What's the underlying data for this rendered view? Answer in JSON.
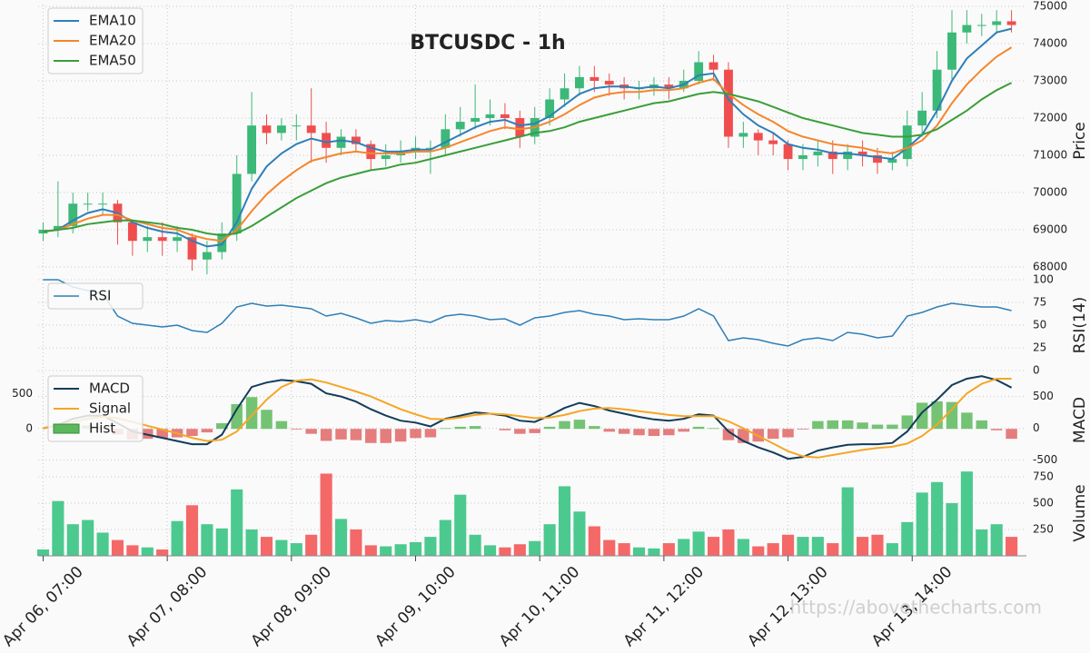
{
  "watermark": "https://abovethecharts.com",
  "chart_data": [
    {
      "type": "candlestick",
      "title": "BTCUSDC - 1h",
      "ylabel": "Price",
      "x": [
        0,
        3,
        6,
        9,
        12,
        15,
        18,
        21,
        24,
        27,
        30,
        33,
        36,
        39,
        42,
        45,
        48,
        51,
        54,
        57,
        60,
        63,
        66,
        69,
        72,
        75,
        78,
        81,
        84,
        87,
        90,
        93,
        96,
        99,
        102,
        105,
        108,
        111,
        114,
        117,
        120,
        123,
        126,
        129,
        132,
        135,
        138,
        141,
        144,
        147,
        150,
        153,
        156,
        159,
        162,
        165,
        168,
        171,
        174,
        177,
        180,
        183,
        186,
        189,
        192,
        195
      ],
      "xlim": [
        -1,
        198
      ],
      "xticks": [
        {
          "value": 0,
          "label": "Apr 06, 07:00"
        },
        {
          "value": 25,
          "label": "Apr 07, 08:00"
        },
        {
          "value": 50,
          "label": "Apr 08, 09:00"
        },
        {
          "value": 75,
          "label": "Apr 09, 10:00"
        },
        {
          "value": 100,
          "label": "Apr 10, 11:00"
        },
        {
          "value": 125,
          "label": "Apr 11, 12:00"
        },
        {
          "value": 150,
          "label": "Apr 12, 13:00"
        },
        {
          "value": 175,
          "label": "Apr 13, 14:00"
        }
      ],
      "open": [
        68900,
        69000,
        69100,
        69700,
        69700,
        69700,
        69200,
        68700,
        68800,
        68700,
        68800,
        68200,
        68400,
        68900,
        70500,
        71800,
        71600,
        71800,
        71800,
        71600,
        71200,
        71500,
        71300,
        70900,
        71000,
        71100,
        71200,
        71200,
        71700,
        71900,
        72000,
        72100,
        72000,
        71500,
        72000,
        72500,
        72800,
        73100,
        73000,
        72900,
        72800,
        72800,
        72900,
        72800,
        73000,
        73500,
        73300,
        71500,
        71600,
        71400,
        71300,
        70900,
        71000,
        71100,
        70900,
        71100,
        71000,
        70800,
        70900,
        71800,
        72200,
        73300,
        74300,
        74500,
        74500,
        74600
      ],
      "high": [
        69200,
        70300,
        70000,
        70000,
        70000,
        69800,
        69200,
        69100,
        69200,
        69100,
        68900,
        68700,
        69200,
        71000,
        72700,
        72100,
        72000,
        72100,
        72800,
        71900,
        71700,
        71700,
        71400,
        71300,
        71400,
        71500,
        71400,
        72100,
        72300,
        72900,
        72500,
        72400,
        72200,
        72300,
        72800,
        73200,
        73400,
        73400,
        73200,
        73100,
        73000,
        73100,
        73100,
        73300,
        73800,
        73700,
        73500,
        71900,
        71700,
        71600,
        71400,
        71300,
        71400,
        71400,
        71300,
        71400,
        71200,
        71100,
        72200,
        72700,
        73800,
        74900,
        74900,
        74800,
        74900,
        74900
      ],
      "low": [
        68700,
        68800,
        68900,
        69500,
        69400,
        68600,
        68300,
        68400,
        68300,
        68400,
        67900,
        67800,
        68200,
        68700,
        70300,
        71300,
        71400,
        71400,
        70800,
        70800,
        71000,
        71100,
        70600,
        70700,
        70800,
        70900,
        70500,
        71000,
        71500,
        71700,
        71800,
        71700,
        71200,
        71300,
        71800,
        72300,
        72600,
        72700,
        72600,
        72500,
        72500,
        72600,
        72500,
        72700,
        72900,
        73000,
        71200,
        71200,
        71000,
        71000,
        70600,
        70600,
        70700,
        70500,
        70600,
        70700,
        70500,
        70600,
        70700,
        71500,
        72000,
        73000,
        74000,
        74200,
        74300,
        74300
      ],
      "close": [
        69000,
        69100,
        69700,
        69700,
        69700,
        69200,
        68700,
        68800,
        68700,
        68800,
        68200,
        68400,
        68900,
        70500,
        71800,
        71600,
        71800,
        71800,
        71600,
        71200,
        71500,
        71300,
        70900,
        71000,
        71100,
        71200,
        71200,
        71700,
        71900,
        72000,
        72100,
        72000,
        71500,
        72000,
        72500,
        72800,
        73100,
        73000,
        72900,
        72800,
        72800,
        72900,
        72800,
        73000,
        73500,
        73300,
        71500,
        71600,
        71400,
        71300,
        70900,
        71000,
        71100,
        70900,
        71100,
        71000,
        70800,
        70900,
        71800,
        72200,
        73300,
        74300,
        74500,
        74500,
        74600,
        74500
      ],
      "up_color": "#3cb878",
      "down_color": "#f04e4e",
      "series": [
        {
          "name": "EMA10",
          "color": "#2e7fb8",
          "values": [
            68950,
            69000,
            69250,
            69450,
            69550,
            69450,
            69200,
            69050,
            68950,
            68900,
            68700,
            68550,
            68600,
            69200,
            70100,
            70700,
            71050,
            71300,
            71450,
            71350,
            71400,
            71350,
            71200,
            71100,
            71100,
            71150,
            71150,
            71350,
            71550,
            71750,
            71900,
            71950,
            71800,
            71850,
            72050,
            72350,
            72650,
            72800,
            72850,
            72850,
            72800,
            72850,
            72800,
            72900,
            73150,
            73200,
            72500,
            72100,
            71800,
            71600,
            71300,
            71200,
            71150,
            71050,
            71050,
            71000,
            70950,
            70900,
            71200,
            71550,
            72200,
            73000,
            73600,
            73950,
            74300,
            74400
          ]
        },
        {
          "name": "EMA20",
          "color": "#f5862a",
          "values": [
            68950,
            69000,
            69150,
            69300,
            69400,
            69400,
            69250,
            69150,
            69050,
            69000,
            68850,
            68750,
            68700,
            69000,
            69500,
            69950,
            70300,
            70600,
            70850,
            70950,
            71050,
            71100,
            71050,
            71050,
            71050,
            71100,
            71100,
            71200,
            71350,
            71500,
            71650,
            71750,
            71700,
            71750,
            71900,
            72100,
            72350,
            72550,
            72650,
            72700,
            72700,
            72750,
            72750,
            72800,
            72950,
            73050,
            72650,
            72350,
            72100,
            71900,
            71650,
            71500,
            71400,
            71300,
            71250,
            71200,
            71100,
            71050,
            71200,
            71400,
            71800,
            72400,
            72900,
            73300,
            73650,
            73900
          ]
        },
        {
          "name": "EMA50",
          "color": "#3a9e3a",
          "values": [
            68950,
            69000,
            69050,
            69150,
            69200,
            69250,
            69250,
            69200,
            69150,
            69050,
            69000,
            68900,
            68850,
            68900,
            69100,
            69350,
            69600,
            69850,
            70050,
            70250,
            70400,
            70500,
            70600,
            70650,
            70750,
            70800,
            70900,
            71000,
            71100,
            71200,
            71300,
            71400,
            71500,
            71600,
            71650,
            71750,
            71900,
            72000,
            72100,
            72200,
            72300,
            72400,
            72450,
            72550,
            72650,
            72700,
            72650,
            72550,
            72450,
            72300,
            72150,
            72000,
            71900,
            71800,
            71700,
            71600,
            71550,
            71500,
            71500,
            71550,
            71700,
            71950,
            72200,
            72500,
            72750,
            72950
          ]
        }
      ],
      "ylim": [
        67730,
        75050
      ],
      "yticks": [
        68000,
        69000,
        70000,
        71000,
        72000,
        73000,
        74000,
        75000
      ],
      "grid": true,
      "legend": "upper left"
    },
    {
      "type": "line",
      "ylabel": "RSI(14)",
      "series": [
        {
          "name": "RSI",
          "color": "#2e7fb8",
          "values": [
            100,
            100,
            92,
            88,
            85,
            60,
            52,
            50,
            48,
            50,
            44,
            42,
            52,
            70,
            74,
            71,
            72,
            70,
            68,
            60,
            63,
            58,
            52,
            55,
            54,
            56,
            53,
            60,
            62,
            60,
            56,
            57,
            50,
            58,
            60,
            64,
            66,
            62,
            60,
            56,
            57,
            56,
            56,
            60,
            68,
            60,
            33,
            36,
            34,
            30,
            27,
            34,
            36,
            33,
            42,
            40,
            36,
            38,
            60,
            64,
            70,
            74,
            72,
            70,
            70,
            66
          ]
        }
      ],
      "ylim": [
        0,
        100
      ],
      "yticks": [
        0,
        25,
        50,
        75,
        100
      ],
      "grid": true,
      "legend": "upper left"
    },
    {
      "type": "macd",
      "ylabel": "MACD",
      "series": [
        {
          "name": "MACD",
          "color": "#123c5a",
          "values": [
            0,
            50,
            150,
            200,
            200,
            80,
            -50,
            -100,
            -150,
            -200,
            -250,
            -250,
            -100,
            300,
            650,
            720,
            760,
            740,
            700,
            550,
            500,
            420,
            300,
            200,
            120,
            90,
            30,
            150,
            200,
            250,
            230,
            200,
            120,
            100,
            200,
            320,
            400,
            350,
            280,
            230,
            180,
            140,
            120,
            150,
            220,
            200,
            -50,
            -200,
            -300,
            -380,
            -480,
            -450,
            -350,
            -300,
            -260,
            -250,
            -250,
            -230,
            -50,
            250,
            450,
            680,
            780,
            820,
            760,
            640
          ]
        },
        {
          "name": "Signal",
          "color": "#f5a623",
          "values": [
            0,
            50,
            100,
            150,
            180,
            160,
            100,
            40,
            -20,
            -80,
            -150,
            -200,
            -180,
            -50,
            200,
            450,
            650,
            750,
            770,
            720,
            650,
            580,
            500,
            400,
            300,
            220,
            150,
            140,
            170,
            210,
            230,
            220,
            190,
            160,
            170,
            210,
            270,
            310,
            320,
            300,
            270,
            240,
            210,
            190,
            190,
            190,
            110,
            0,
            -120,
            -240,
            -360,
            -440,
            -460,
            -420,
            -380,
            -340,
            -310,
            -290,
            -240,
            -120,
            60,
            300,
            550,
            700,
            780,
            780
          ]
        },
        {
          "name": "Hist",
          "color": "#5cb85c",
          "negative_color": "#e06666",
          "axis": "y2",
          "values": [
            0,
            0,
            50,
            50,
            20,
            -80,
            -150,
            -140,
            -130,
            -120,
            -100,
            -50,
            80,
            350,
            450,
            270,
            110,
            -10,
            -70,
            -170,
            -150,
            -160,
            -200,
            -200,
            -180,
            -130,
            -120,
            10,
            30,
            40,
            0,
            -20,
            -70,
            -60,
            30,
            110,
            130,
            40,
            -40,
            -70,
            -90,
            -100,
            -90,
            -40,
            30,
            10,
            -160,
            -200,
            -180,
            -140,
            -120,
            -10,
            110,
            120,
            120,
            90,
            60,
            60,
            190,
            370,
            390,
            380,
            230,
            120,
            -20,
            -140
          ]
        }
      ],
      "ylim": [
        -620,
        880
      ],
      "yticks": [
        -500,
        0,
        500
      ],
      "y2lim": [
        -550,
        800
      ],
      "y2ticks": [
        0,
        500
      ],
      "grid": true,
      "legend": "upper left"
    },
    {
      "type": "volume",
      "ylabel": "Volume",
      "values": [
        60,
        520,
        300,
        340,
        220,
        150,
        100,
        80,
        60,
        330,
        480,
        300,
        260,
        630,
        250,
        180,
        150,
        120,
        200,
        780,
        350,
        250,
        100,
        90,
        110,
        130,
        180,
        340,
        580,
        200,
        100,
        80,
        110,
        140,
        300,
        660,
        420,
        280,
        150,
        120,
        80,
        70,
        120,
        160,
        230,
        180,
        250,
        160,
        90,
        120,
        200,
        180,
        180,
        120,
        650,
        180,
        200,
        120,
        320,
        600,
        700,
        500,
        800,
        250,
        300,
        180
      ],
      "up_color": "#4cc98f",
      "down_color": "#f46868",
      "ylim": [
        0,
        810
      ],
      "yticks": [
        250,
        500,
        750
      ],
      "grid": true
    }
  ]
}
